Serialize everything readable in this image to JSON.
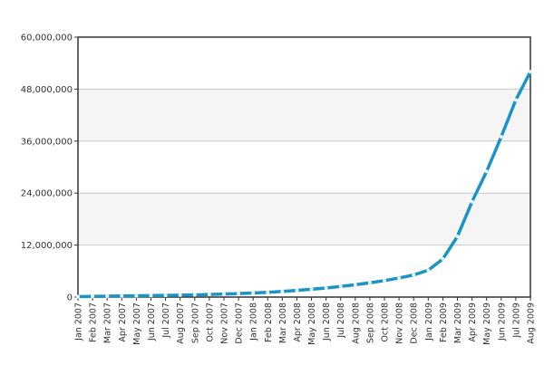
{
  "chart_data": {
    "type": "line",
    "title": "",
    "xlabel": "",
    "ylabel": "",
    "ylim": [
      0,
      60000000
    ],
    "yticks": [
      "0",
      "12,000,000",
      "24,000,000",
      "36,000,000",
      "48,000,000",
      "60,000,000"
    ],
    "ytick_values": [
      0,
      12000000,
      24000000,
      36000000,
      48000000,
      60000000
    ],
    "grid": true,
    "legend": "none",
    "categories": [
      "Jan 2007",
      "Feb 2007",
      "Mar 2007",
      "Apr 2007",
      "May 2007",
      "Jun 2007",
      "Jul 2007",
      "Aug 2007",
      "Sep 2007",
      "Oct 2007",
      "Nov 2007",
      "Dec 2007",
      "Jan 2008",
      "Feb 2008",
      "Mar 2008",
      "Apr 2008",
      "May 2008",
      "Jun 2008",
      "Jul 2008",
      "Aug 2008",
      "Sep 2008",
      "Oct 2008",
      "Nov 2008",
      "Dec 2008",
      "Jan 2009",
      "Feb 2009",
      "Mar 2009",
      "Apr 2009",
      "May 2009",
      "Jun 2009",
      "Jul 2009",
      "Aug 2009"
    ],
    "series": [
      {
        "color": "#1a94c8",
        "values": [
          100000,
          150000,
          200000,
          250000,
          300000,
          350000,
          400000,
          450000,
          500000,
          600000,
          700000,
          800000,
          950000,
          1100000,
          1300000,
          1550000,
          1800000,
          2100000,
          2450000,
          2850000,
          3300000,
          3800000,
          4400000,
          5100000,
          6200000,
          8800000,
          14000000,
          22000000,
          29000000,
          37000000,
          45500000,
          52000000
        ]
      }
    ]
  },
  "colors": {
    "line": "#1a94c8",
    "marker": "#e8f4fa",
    "band": "#f5f5f5",
    "grid": "#c8c8c8",
    "axis": "#333333"
  }
}
